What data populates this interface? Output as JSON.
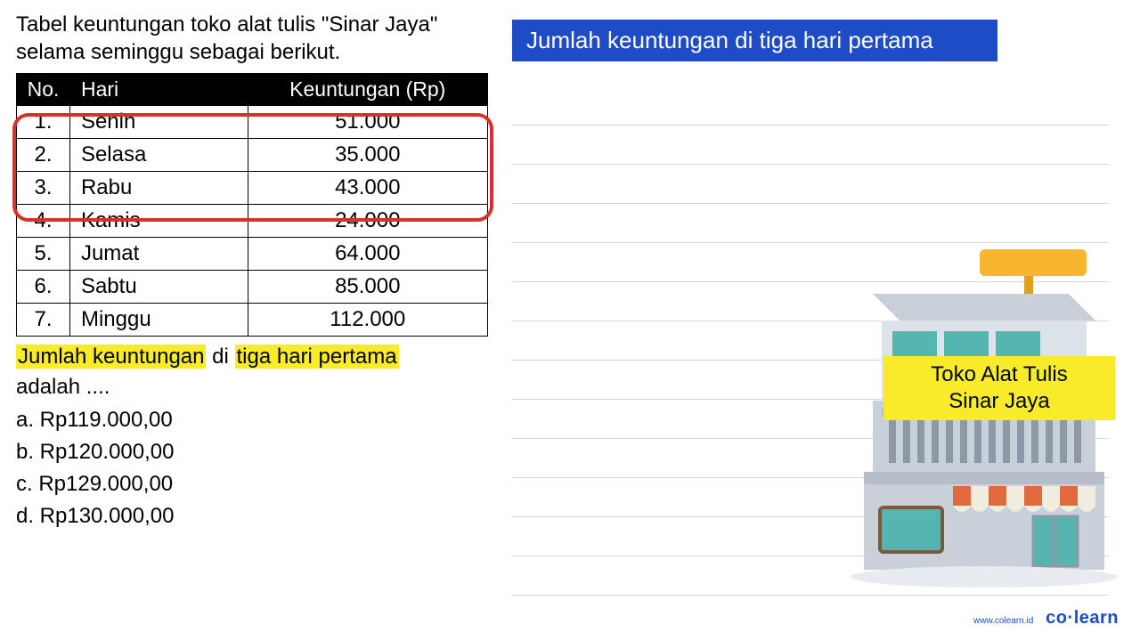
{
  "intro": "Tabel keuntungan toko alat tulis \"Sinar Jaya\" selama seminggu sebagai berikut.",
  "table": {
    "headers": {
      "no": "No.",
      "hari": "Hari",
      "profit": "Keuntungan (Rp)"
    },
    "rows": [
      {
        "no": "1.",
        "hari": "Senin",
        "val": "51.000"
      },
      {
        "no": "2.",
        "hari": "Selasa",
        "val": "35.000"
      },
      {
        "no": "3.",
        "hari": "Rabu",
        "val": "43.000"
      },
      {
        "no": "4.",
        "hari": "Kamis",
        "val": "24.000"
      },
      {
        "no": "5.",
        "hari": "Jumat",
        "val": "64.000"
      },
      {
        "no": "6.",
        "hari": "Sabtu",
        "val": "85.000"
      },
      {
        "no": "7.",
        "hari": "Minggu",
        "val": "112.000"
      }
    ],
    "highlight_rows": [
      0,
      1,
      2
    ],
    "highlight_color": "#d9302a"
  },
  "question": {
    "hl1": "Jumlah keuntungan",
    "mid": " di ",
    "hl2": "tiga hari pertama",
    "tail": "adalah ....",
    "options": {
      "a": "a.  Rp119.000,00",
      "b": "b.  Rp120.000,00",
      "c": "c.  Rp129.000,00",
      "d": "d.  Rp130.000,00"
    }
  },
  "banner": "Jumlah keuntungan di tiga hari pertama",
  "shop_sign": {
    "line1": "Toko Alat Tulis",
    "line2": "Sinar Jaya"
  },
  "branding": {
    "url": "www.colearn.id",
    "brand_pre": "co",
    "brand_post": "learn"
  },
  "colors": {
    "yellow": "#f8ec2a",
    "blue": "#1e4cc7",
    "building_roof": "#f7b62e",
    "building_wall": "#c8d0d9",
    "building_wall_light": "#dbe2ea",
    "building_windows": "#55b6b0",
    "awning": "#e06a3b"
  },
  "ruled_line_count": 13
}
